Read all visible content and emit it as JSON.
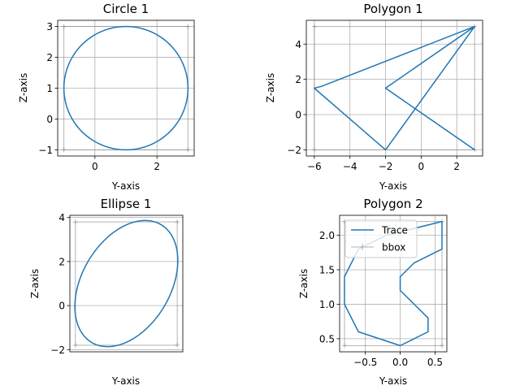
{
  "chart_data": [
    {
      "type": "line",
      "title": "Circle 1",
      "xlabel": "Y-axis",
      "ylabel": "Z-axis",
      "xlim": [
        -1.2,
        3.2
      ],
      "ylim": [
        -1.2,
        3.2
      ],
      "xticks": [
        0,
        2
      ],
      "yticks": [
        -1,
        0,
        1,
        2,
        3
      ],
      "ytick_labels": [
        "−1",
        "0",
        "1",
        "2",
        "3"
      ],
      "grid": true,
      "shape": {
        "kind": "circle",
        "cx": 1,
        "cy": 1,
        "r": 2
      },
      "bbox_outline": {
        "x": [
          -1,
          3
        ],
        "y": [
          -1,
          3
        ]
      },
      "color": "#1f77b4"
    },
    {
      "type": "line",
      "title": "Polygon 1",
      "xlabel": "Y-axis",
      "ylabel": "Z-axis",
      "xlim": [
        -6.45,
        3.45
      ],
      "ylim": [
        -2.35,
        5.35
      ],
      "xticks": [
        -6,
        -4,
        -2,
        0,
        2
      ],
      "xtick_labels": [
        "−6",
        "−4",
        "−2",
        "0",
        "2"
      ],
      "yticks": [
        -2,
        0,
        2,
        4
      ],
      "ytick_labels": [
        "−2",
        "0",
        "2",
        "4"
      ],
      "grid": true,
      "series": [
        {
          "x": [
            3,
            -5.6,
            -6,
            -2,
            3,
            -2,
            3
          ],
          "y": [
            5,
            1.6,
            1.5,
            -2,
            5,
            1.5,
            -2
          ]
        }
      ],
      "bbox_outline": {
        "x": [
          -6,
          3
        ],
        "y": [
          -2,
          5
        ]
      },
      "color": "#1f77b4"
    },
    {
      "type": "line",
      "title": "Ellipse 1",
      "xlabel": "Y-axis",
      "ylabel": "Z-axis",
      "xlim": [
        -1.55,
        3.55
      ],
      "ylim": [
        -2.1,
        4.1
      ],
      "xticks": [],
      "yticks": [
        -2,
        0,
        2,
        4
      ],
      "ytick_labels": [
        "−2",
        "0",
        "2",
        "4"
      ],
      "grid": true,
      "shape": {
        "kind": "ellipse",
        "cx": 1,
        "cy": 1,
        "a": 3.1,
        "b": 2,
        "angle_deg": 60
      },
      "bbox_outline": {
        "x": [
          -1.3,
          3.3
        ],
        "y": [
          -1.8,
          3.8
        ]
      },
      "color": "#1f77b4"
    },
    {
      "type": "line",
      "title": "Polygon 2",
      "xlabel": "Y-axis",
      "ylabel": "Z-axis",
      "xlim": [
        -0.87,
        0.67
      ],
      "ylim": [
        0.31,
        2.29
      ],
      "xticks": [
        -0.5,
        0,
        0.5
      ],
      "xtick_labels": [
        "−0.5",
        "0.0",
        "0.5"
      ],
      "yticks": [
        0.5,
        1.0,
        1.5,
        2.0
      ],
      "ytick_labels": [
        "0.5",
        "1.0",
        "1.5",
        "2.0"
      ],
      "grid": true,
      "series": [
        {
          "name": "Trace",
          "x": [
            0.6,
            0.6,
            0.2,
            0,
            0,
            0.4,
            0.4,
            0,
            -0.6,
            -0.8,
            -0.8,
            -0.6,
            -0.2,
            0.6
          ],
          "y": [
            2.2,
            1.8,
            1.6,
            1.4,
            1.2,
            0.8,
            0.6,
            0.4,
            0.6,
            1.0,
            1.4,
            1.8,
            2.0,
            2.2
          ]
        },
        {
          "name": "bbox"
        }
      ],
      "bbox_outline": {
        "x": [
          -0.8,
          0.6
        ],
        "y": [
          0.4,
          2.2
        ]
      },
      "legend": "upper left",
      "color": "#1f77b4"
    }
  ]
}
